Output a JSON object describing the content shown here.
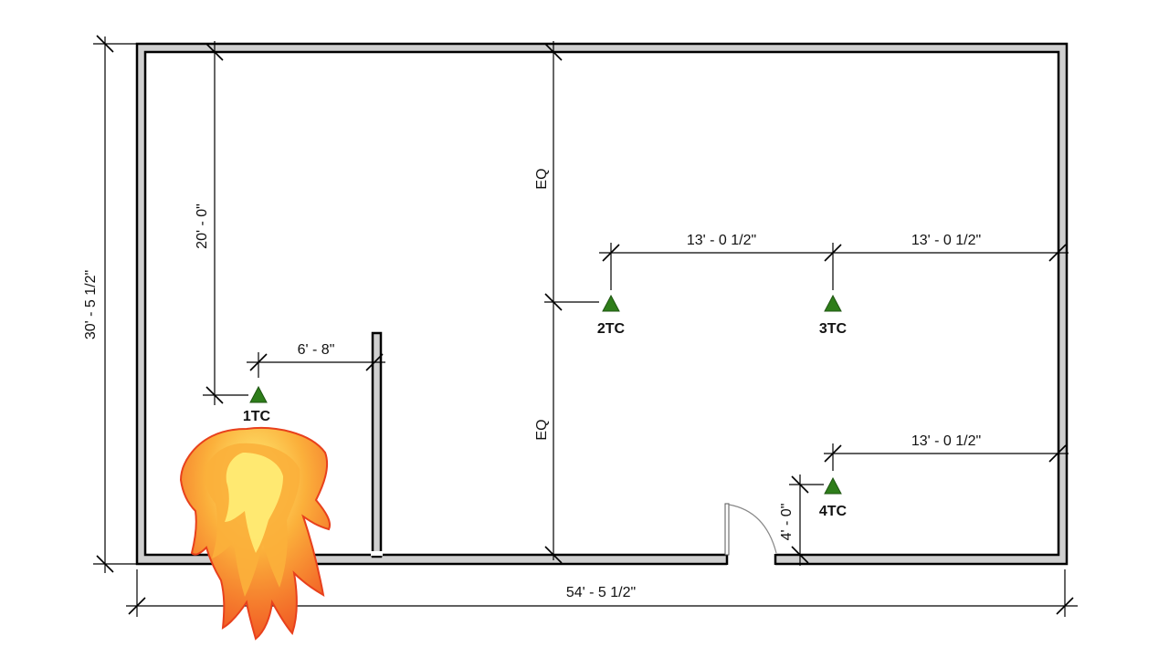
{
  "dimensions": {
    "overall_height": "30' - 5 1/2\"",
    "overall_width": "54' - 5 1/2\"",
    "left_offset": "20' - 0\"",
    "partition_offset": "6' - 8\"",
    "eq_upper": "EQ",
    "eq_lower": "EQ",
    "span_2tc_3tc": "13' - 0 1/2\"",
    "span_3tc_wall": "13' - 0 1/2\"",
    "span_4tc_wall": "13' - 0 1/2\"",
    "bottom_offset_4tc": "4' - 0\""
  },
  "sensors": [
    {
      "label": "1TC"
    },
    {
      "label": "2TC"
    },
    {
      "label": "3TC"
    },
    {
      "label": "4TC"
    }
  ],
  "colors": {
    "sensor": "#2e7d1a",
    "wall_fill": "#cfcfcf",
    "fire_outer": "#f15a24",
    "fire_mid": "#fbb03b",
    "fire_inner": "#fff27a"
  },
  "icons": {
    "fire": "fire-icon",
    "sensor": "triangle-marker-icon",
    "door": "door-swing-icon"
  }
}
